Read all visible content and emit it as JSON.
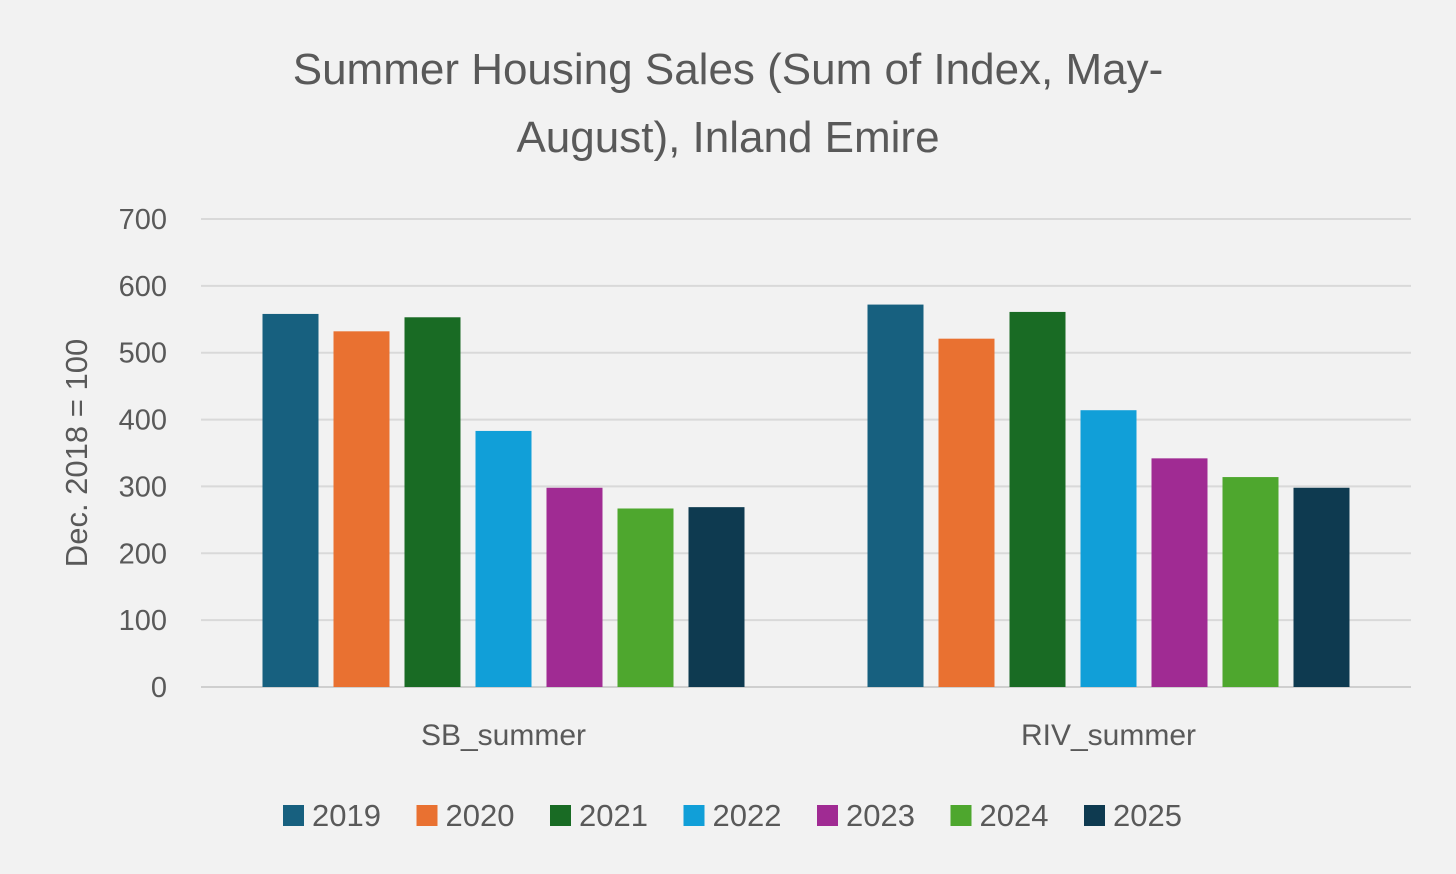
{
  "chart_data": {
    "type": "bar",
    "title_lines": [
      "Summer Housing Sales (Sum of Index, May-",
      "August), Inland Emire"
    ],
    "xlabel": "",
    "ylabel": "Dec. 2018 = 100",
    "ylim": [
      0,
      700
    ],
    "yticks": [
      0,
      100,
      200,
      300,
      400,
      500,
      600,
      700
    ],
    "grid": true,
    "legend": "bottom",
    "categories": [
      "SB_summer",
      "RIV_summer"
    ],
    "series": [
      {
        "name": "2019",
        "color": "#17607f",
        "values": [
          558,
          572
        ]
      },
      {
        "name": "2020",
        "color": "#e97131",
        "values": [
          532,
          521
        ]
      },
      {
        "name": "2021",
        "color": "#196b24",
        "values": [
          553,
          561
        ]
      },
      {
        "name": "2022",
        "color": "#119fd8",
        "values": [
          383,
          414
        ]
      },
      {
        "name": "2023",
        "color": "#a02b93",
        "values": [
          298,
          342
        ]
      },
      {
        "name": "2024",
        "color": "#4ea72e",
        "values": [
          267,
          314
        ]
      },
      {
        "name": "2025",
        "color": "#0e3a50",
        "values": [
          269,
          298
        ]
      }
    ]
  }
}
